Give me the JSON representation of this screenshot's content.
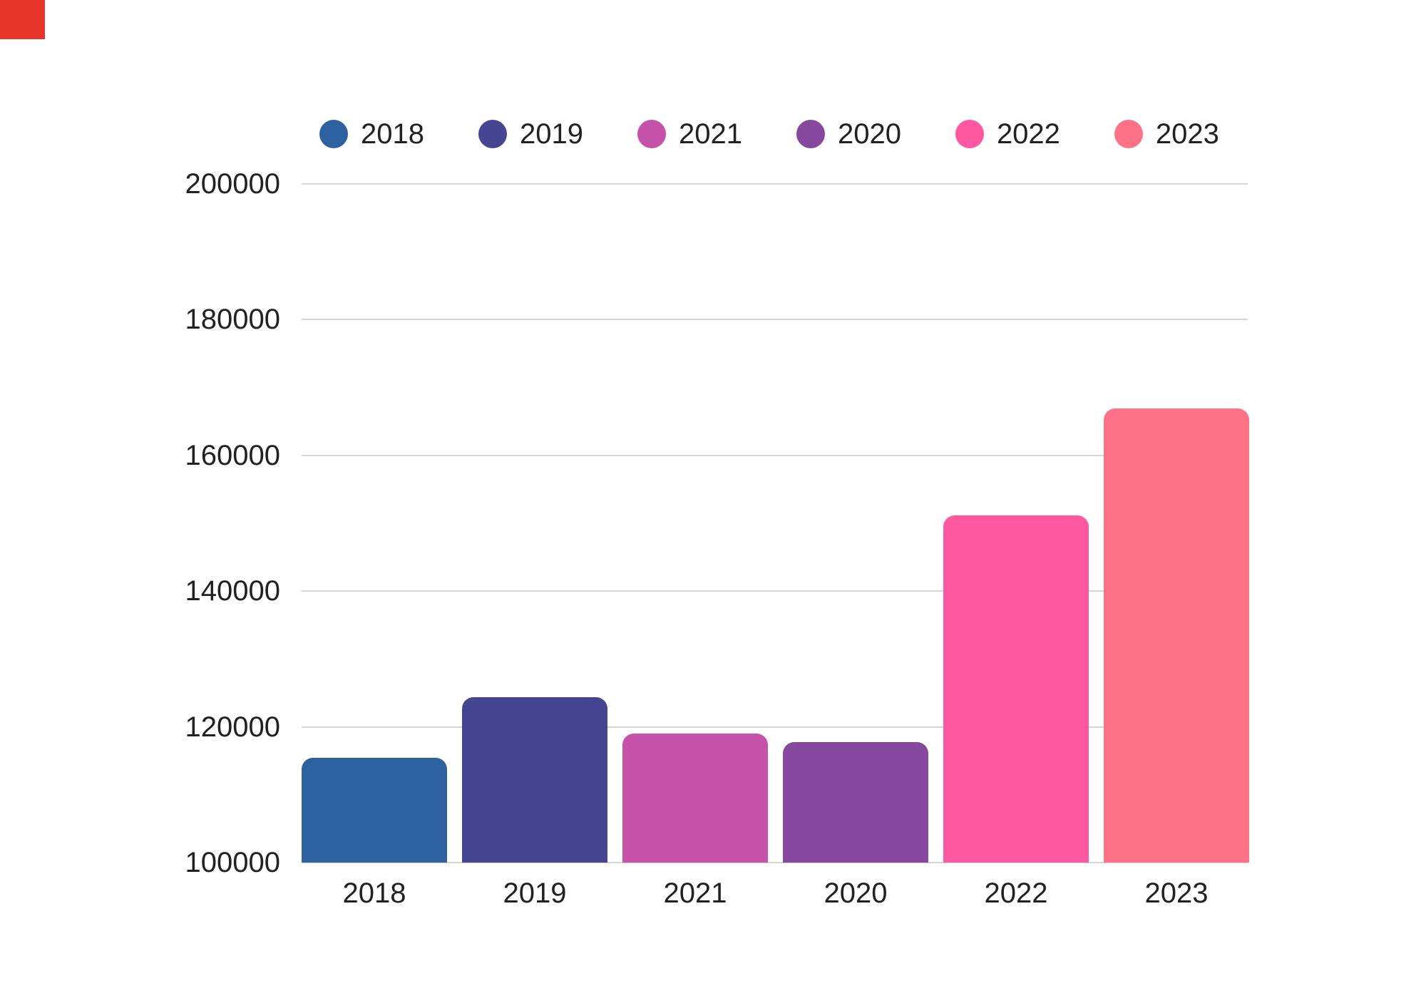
{
  "corner_marker": {
    "color": "#e8352b"
  },
  "colors": {
    "background": "#ffffff",
    "gridline": "#d5d5d5",
    "text": "#212121"
  },
  "chart_data": {
    "type": "bar",
    "title": "",
    "xlabel": "",
    "ylabel": "",
    "categories": [
      "2018",
      "2019",
      "2021",
      "2020",
      "2022",
      "2023"
    ],
    "values": [
      115400,
      124400,
      119000,
      117800,
      151200,
      166900
    ],
    "bar_colors": [
      "#2e61a0",
      "#454591",
      "#c553a9",
      "#86479f",
      "#fe58a1",
      "#fe7287"
    ],
    "ylim": [
      100000,
      200000
    ],
    "ytick_step": 20000,
    "yticks": [
      "100000",
      "120000",
      "140000",
      "160000",
      "180000",
      "200000"
    ],
    "grid": true,
    "legend": {
      "position": "top",
      "entries": [
        {
          "label": "2018",
          "color": "#2e61a0"
        },
        {
          "label": "2019",
          "color": "#454591"
        },
        {
          "label": "2021",
          "color": "#c553a9"
        },
        {
          "label": "2020",
          "color": "#86479f"
        },
        {
          "label": "2022",
          "color": "#fe58a1"
        },
        {
          "label": "2023",
          "color": "#fe7287"
        }
      ]
    }
  }
}
